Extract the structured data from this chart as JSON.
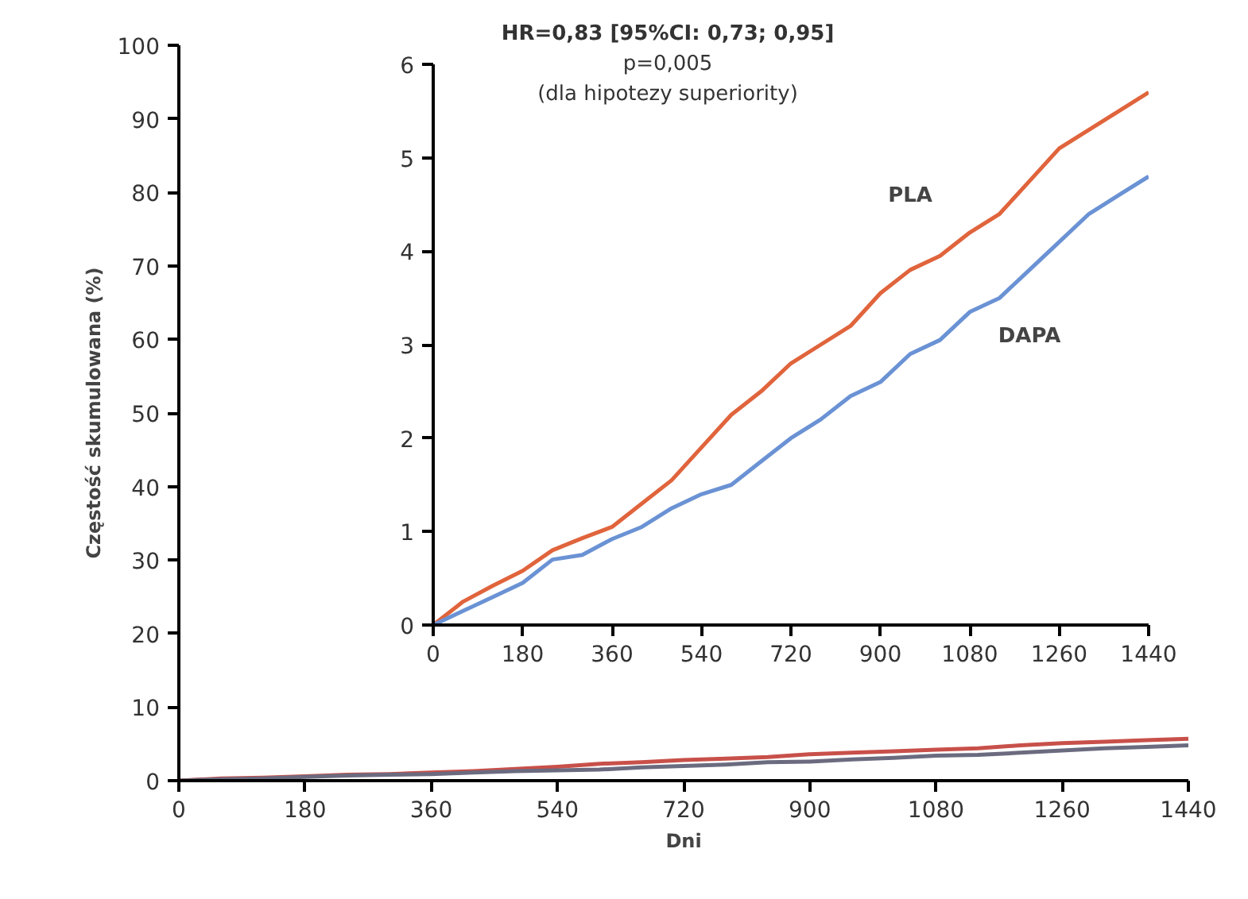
{
  "chart_data": [
    {
      "type": "line",
      "xlabel": "Dni",
      "ylabel": "Częstość skumulowana (%)",
      "xlim": [
        0,
        1440
      ],
      "ylim": [
        0,
        100
      ],
      "xticks": [
        0,
        180,
        360,
        540,
        720,
        900,
        1080,
        1260,
        1440
      ],
      "yticks": [
        0,
        10,
        20,
        30,
        40,
        50,
        60,
        70,
        80,
        90,
        100
      ],
      "x": [
        0,
        60,
        120,
        180,
        240,
        300,
        360,
        420,
        480,
        540,
        600,
        660,
        720,
        780,
        840,
        900,
        960,
        1020,
        1080,
        1140,
        1200,
        1260,
        1320,
        1380,
        1440
      ],
      "series": [
        {
          "color": "#c8504a",
          "values": [
            0,
            0.3,
            0.4,
            0.6,
            0.8,
            0.9,
            1.1,
            1.3,
            1.6,
            1.9,
            2.3,
            2.5,
            2.8,
            3.0,
            3.2,
            3.6,
            3.8,
            4.0,
            4.2,
            4.4,
            4.8,
            5.1,
            5.3,
            5.5,
            5.7
          ]
        },
        {
          "color": "#6b6b80",
          "values": [
            0,
            0.2,
            0.3,
            0.5,
            0.7,
            0.8,
            0.9,
            1.1,
            1.3,
            1.4,
            1.5,
            1.8,
            2.0,
            2.2,
            2.5,
            2.6,
            2.9,
            3.1,
            3.4,
            3.5,
            3.8,
            4.1,
            4.4,
            4.6,
            4.8
          ]
        }
      ]
    },
    {
      "type": "line",
      "annotations": [
        "HR=0,83 [95%CI: 0,73; 0,95]",
        "p=0,005",
        "(dla hipotezy superiority)"
      ],
      "xlim": [
        0,
        1440
      ],
      "ylim": [
        0,
        6
      ],
      "xticks": [
        0,
        180,
        360,
        540,
        720,
        900,
        1080,
        1260,
        1440
      ],
      "yticks": [
        0,
        1,
        2,
        3,
        4,
        5,
        6
      ],
      "x": [
        0,
        60,
        120,
        180,
        240,
        300,
        360,
        420,
        480,
        540,
        600,
        660,
        720,
        780,
        840,
        900,
        960,
        1020,
        1080,
        1140,
        1200,
        1260,
        1320,
        1380,
        1440
      ],
      "series": [
        {
          "name": "PLA",
          "color": "#e0643c",
          "values": [
            0,
            0.25,
            0.42,
            0.58,
            0.8,
            0.93,
            1.05,
            1.3,
            1.55,
            1.9,
            2.25,
            2.5,
            2.8,
            3.0,
            3.2,
            3.55,
            3.8,
            3.95,
            4.2,
            4.4,
            4.75,
            5.1,
            5.3,
            5.5,
            5.7
          ]
        },
        {
          "name": "DAPA",
          "color": "#6a92d4",
          "values": [
            0,
            0.15,
            0.3,
            0.45,
            0.7,
            0.75,
            0.92,
            1.05,
            1.25,
            1.4,
            1.5,
            1.75,
            2.0,
            2.2,
            2.45,
            2.6,
            2.9,
            3.05,
            3.35,
            3.5,
            3.8,
            4.1,
            4.4,
            4.6,
            4.8
          ]
        }
      ]
    }
  ]
}
